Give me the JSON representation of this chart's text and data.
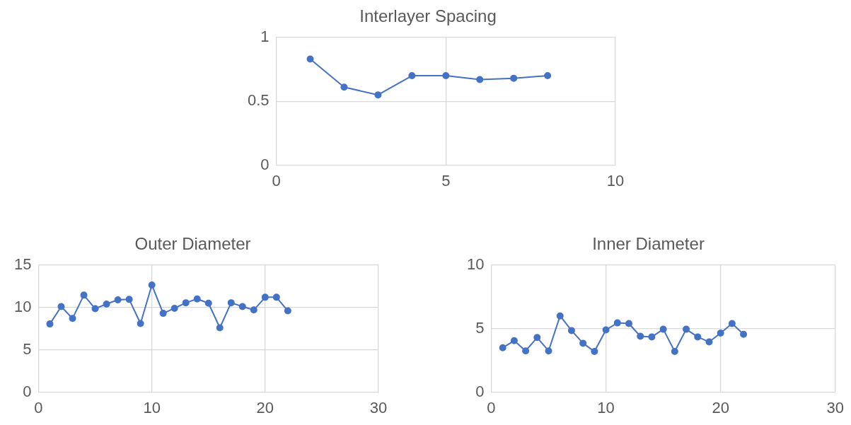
{
  "chart_data": [
    {
      "type": "line",
      "title": "Interlayer Spacing",
      "x": [
        1,
        2,
        3,
        4,
        5,
        6,
        7,
        8
      ],
      "series": [
        {
          "color": "#4472c4",
          "values": [
            0.83,
            0.61,
            0.55,
            0.7,
            0.7,
            0.67,
            0.68,
            0.7
          ]
        }
      ],
      "xlim": [
        0,
        10
      ],
      "xticks": [
        0,
        5,
        10
      ],
      "ylim": [
        0,
        1
      ],
      "yticks": [
        0,
        0.5,
        1
      ],
      "grid": true,
      "legend": false,
      "marker": "circle",
      "line_style": "solid"
    },
    {
      "type": "line",
      "title": "Outer Diameter",
      "x": [
        1,
        2,
        3,
        4,
        5,
        6,
        7,
        8,
        9,
        10,
        11,
        12,
        13,
        14,
        15,
        16,
        17,
        18,
        19,
        20,
        21,
        22
      ],
      "series": [
        {
          "color": "#4472c4",
          "values": [
            8.05,
            10.1,
            8.7,
            11.45,
            9.85,
            10.4,
            10.9,
            10.95,
            8.1,
            12.65,
            9.3,
            9.9,
            10.55,
            11,
            10.5,
            7.6,
            10.55,
            10.1,
            9.7,
            11.2,
            11.2,
            9.6
          ]
        }
      ],
      "xlim": [
        0,
        30
      ],
      "xticks": [
        0,
        10,
        20,
        30
      ],
      "ylim": [
        0,
        15
      ],
      "yticks": [
        0,
        5,
        10,
        15
      ],
      "grid": true,
      "legend": false,
      "marker": "circle",
      "line_style": "solid"
    },
    {
      "type": "line",
      "title": "Inner Diameter",
      "x": [
        1,
        2,
        3,
        4,
        5,
        6,
        7,
        8,
        9,
        10,
        11,
        12,
        13,
        14,
        15,
        16,
        17,
        18,
        19,
        20,
        21,
        22
      ],
      "series": [
        {
          "color": "#4472c4",
          "values": [
            3.5,
            4.05,
            3.25,
            4.3,
            3.25,
            6,
            4.85,
            3.85,
            3.2,
            4.9,
            5.45,
            5.4,
            4.4,
            4.35,
            4.95,
            3.2,
            4.95,
            4.35,
            3.95,
            4.65,
            5.4,
            4.55
          ]
        }
      ],
      "xlim": [
        0,
        30
      ],
      "xticks": [
        0,
        10,
        20,
        30
      ],
      "ylim": [
        0,
        10
      ],
      "yticks": [
        0,
        5,
        10
      ],
      "grid": true,
      "legend": false,
      "marker": "circle",
      "line_style": "solid"
    }
  ]
}
